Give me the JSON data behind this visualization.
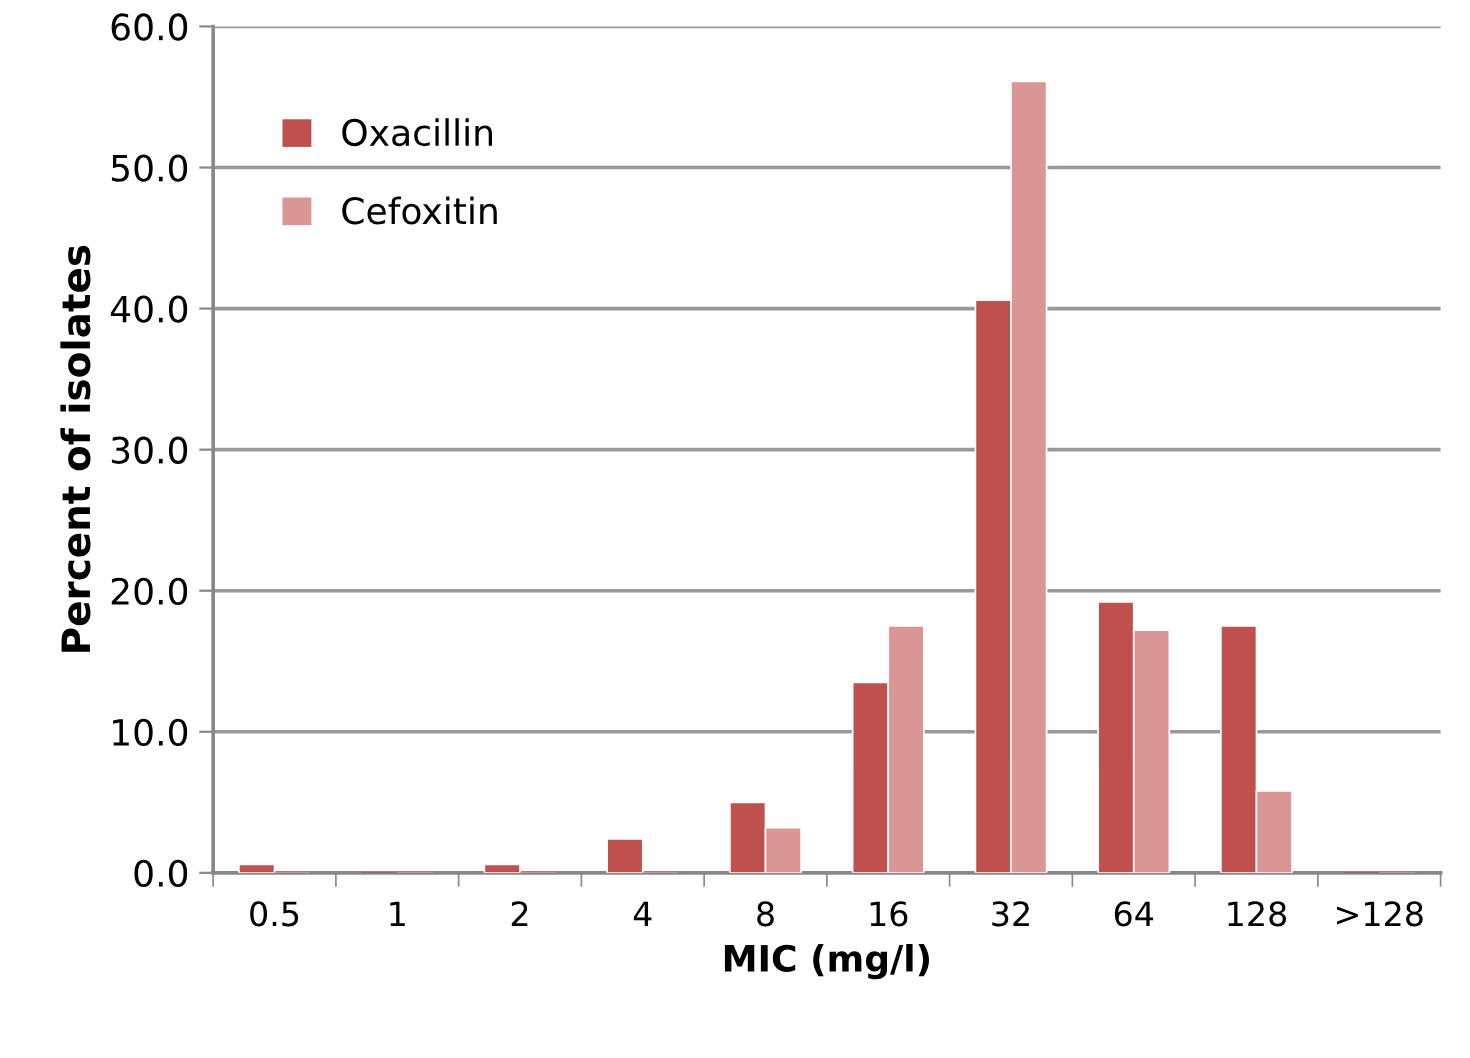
{
  "chart_data": {
    "type": "bar",
    "xlabel": "MIC (mg/l)",
    "ylabel": "Percent of isolates",
    "categories": [
      "0.5",
      "1",
      "2",
      "4",
      "8",
      "16",
      "32",
      "64",
      "128",
      ">128"
    ],
    "series": [
      {
        "name": "Oxacillin",
        "color": "#c0504d",
        "values": [
          0.6,
          0,
          0.6,
          2.4,
          5.0,
          13.5,
          40.6,
          19.2,
          17.5,
          0
        ]
      },
      {
        "name": "Cefoxitin",
        "color": "#d99694",
        "values": [
          0,
          0,
          0,
          0,
          3.2,
          17.5,
          56.1,
          17.2,
          5.8,
          0
        ]
      }
    ],
    "ylim": [
      0,
      60
    ],
    "yticks": [
      {
        "value": 0,
        "label": "0.0"
      },
      {
        "value": 10,
        "label": "10.0"
      },
      {
        "value": 20,
        "label": "20.0"
      },
      {
        "value": 30,
        "label": "30.0"
      },
      {
        "value": 40,
        "label": "40.0"
      },
      {
        "value": 50,
        "label": "50.0"
      },
      {
        "value": 60,
        "label": "60.0"
      }
    ],
    "grid": "y",
    "legend": "top left"
  }
}
